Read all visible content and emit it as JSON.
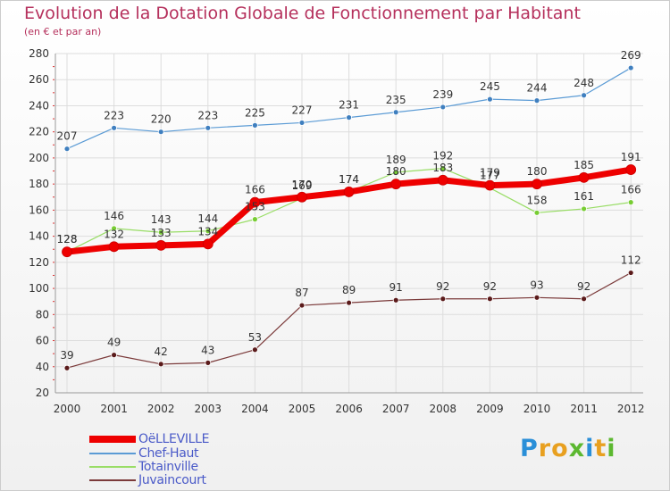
{
  "title": "Evolution de la Dotation Globale de Fonctionnement par Habitant",
  "subtitle": "(en € et par an)",
  "logo": {
    "text": "Proxiti",
    "letters": [
      {
        "ch": "P",
        "color": "#2a8fd8"
      },
      {
        "ch": "r",
        "color": "#e8a020"
      },
      {
        "ch": "o",
        "color": "#e8a020"
      },
      {
        "ch": "x",
        "color": "#5cb830"
      },
      {
        "ch": "i",
        "color": "#2a8fd8"
      },
      {
        "ch": "t",
        "color": "#e8a020"
      },
      {
        "ch": "i",
        "color": "#5cb830"
      }
    ]
  },
  "chart_data": {
    "type": "line",
    "title": "Evolution de la Dotation Globale de Fonctionnement par Habitant",
    "subtitle": "(en € et par an)",
    "xlabel": "",
    "ylabel": "",
    "x": [
      "2000",
      "2001",
      "2002",
      "2003",
      "2004",
      "2005",
      "2006",
      "2007",
      "2008",
      "2009",
      "2010",
      "2011",
      "2012"
    ],
    "ylim": [
      20,
      280
    ],
    "yticks": [
      20,
      40,
      60,
      80,
      100,
      120,
      140,
      160,
      180,
      200,
      220,
      240,
      260,
      280
    ],
    "grid": true,
    "legend_position": "bottom-left",
    "series": [
      {
        "name": "Chef-Haut",
        "color": "#5b9bd5",
        "markerColor": "#3f7fbf",
        "width": 1.2,
        "values": [
          207,
          223,
          220,
          223,
          225,
          227,
          231,
          235,
          239,
          245,
          244,
          248,
          269
        ],
        "labels": [
          "207",
          "223",
          "220",
          "223",
          "225",
          "227",
          "231",
          "235",
          "239",
          "245",
          "244",
          "248",
          "269"
        ]
      },
      {
        "name": "Totainville",
        "color": "#99dd66",
        "markerColor": "#77cc33",
        "width": 1.2,
        "values": [
          128,
          146,
          143,
          144,
          153,
          169,
          174,
          189,
          192,
          177,
          158,
          161,
          166
        ],
        "labels": [
          "128",
          "146",
          "143",
          "144",
          "153",
          "169",
          "174",
          "189",
          "192",
          "177",
          "158",
          "161",
          "166"
        ]
      },
      {
        "name": "OëLLEVILLE",
        "color": "#ee0000",
        "markerColor": "#ee0000",
        "width": 7,
        "values": [
          128,
          132,
          133,
          134,
          166,
          170,
          174,
          180,
          183,
          179,
          180,
          185,
          191
        ],
        "labels": [
          "128",
          "132",
          "133",
          "134",
          "166",
          "170",
          "174",
          "180",
          "183",
          "179",
          "180",
          "185",
          "191"
        ]
      },
      {
        "name": "Juvaincourt",
        "color": "#7b3a3a",
        "markerColor": "#5a1a1a",
        "width": 1.2,
        "values": [
          39,
          49,
          42,
          43,
          53,
          87,
          89,
          91,
          92,
          92,
          93,
          92,
          112
        ],
        "labels": [
          "39",
          "49",
          "42",
          "43",
          "53",
          "87",
          "89",
          "91",
          "92",
          "92",
          "93",
          "92",
          "112"
        ]
      }
    ]
  },
  "legend": [
    {
      "label": "OëLLEVILLE",
      "color": "#ee0000",
      "thick": true
    },
    {
      "label": "Chef-Haut",
      "color": "#5b9bd5",
      "thick": false
    },
    {
      "label": "Totainville",
      "color": "#99dd66",
      "thick": false
    },
    {
      "label": "Juvaincourt",
      "color": "#7b3a3a",
      "thick": false
    }
  ]
}
